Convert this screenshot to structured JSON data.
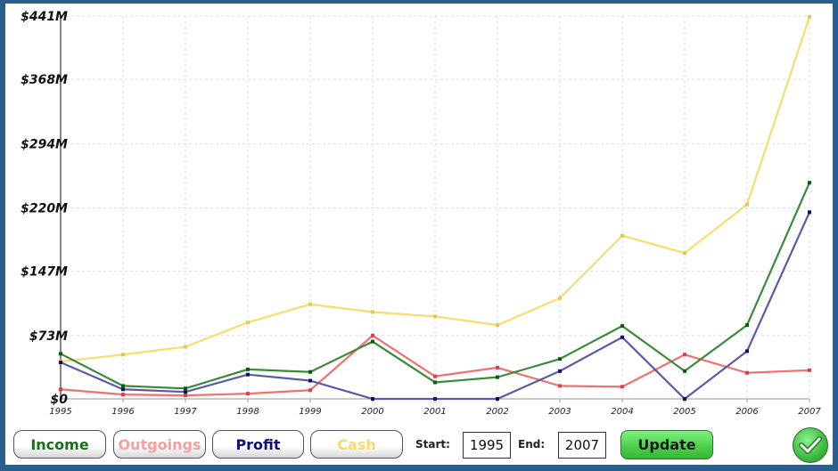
{
  "chart_data": {
    "type": "line",
    "title": "",
    "xlabel": "",
    "ylabel": "",
    "x": [
      "1995",
      "1996",
      "1997",
      "1998",
      "1999",
      "2000",
      "2001",
      "2002",
      "2003",
      "2004",
      "2005",
      "2006",
      "2007"
    ],
    "y_tick_labels": [
      "$0",
      "$73M",
      "$147M",
      "$220M",
      "$294M",
      "$368M",
      "$441M"
    ],
    "y_tick_values": [
      0,
      73,
      147,
      220,
      294,
      368,
      441
    ],
    "ylim": [
      0,
      441
    ],
    "grid": true,
    "legend": "buttons below chart",
    "series": [
      {
        "name": "Income",
        "color": "#3a8a3a",
        "marker": "#0d5a0d",
        "values": [
          52,
          15,
          12,
          34,
          31,
          66,
          19,
          25,
          46,
          84,
          32,
          85,
          249
        ]
      },
      {
        "name": "Outgoings",
        "color": "#f07070",
        "marker": "#e04040",
        "values": [
          11,
          5,
          4,
          6,
          10,
          73,
          26,
          36,
          15,
          14,
          51,
          30,
          33
        ]
      },
      {
        "name": "Profit",
        "color": "#5a5aa8",
        "marker": "#101070",
        "values": [
          42,
          11,
          8,
          28,
          21,
          0,
          0,
          0,
          32,
          71,
          0,
          55,
          215
        ]
      },
      {
        "name": "Cash",
        "color": "#f7dc6f",
        "marker": "#e8c84a",
        "values": [
          43,
          51,
          60,
          88,
          109,
          100,
          95,
          85,
          116,
          188,
          168,
          224,
          440
        ]
      }
    ]
  },
  "controls": {
    "buttons": [
      {
        "label": "Income",
        "color": "#1b6e1b"
      },
      {
        "label": "Outgoings",
        "color": "#f4a0a0"
      },
      {
        "label": "Profit",
        "color": "#10107a"
      },
      {
        "label": "Cash",
        "color": "#f5dc70"
      }
    ],
    "start_label": "Start:",
    "start_value": "1995",
    "end_label": "End:",
    "end_value": "2007",
    "update_label": "Update",
    "ok_icon": "checkmark-icon"
  }
}
